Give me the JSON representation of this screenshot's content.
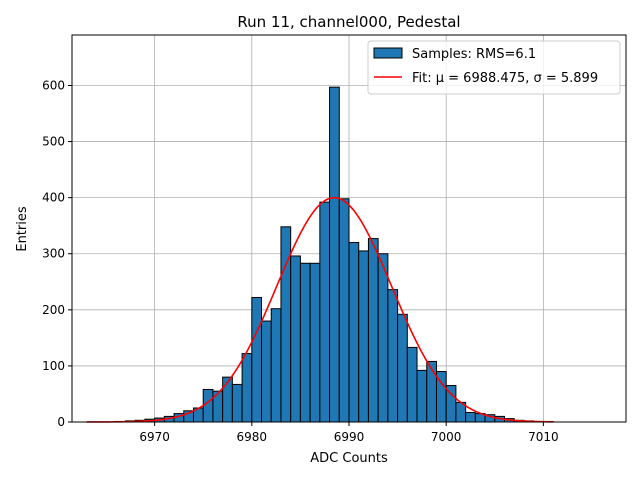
{
  "chart_data": {
    "type": "bar",
    "title": "Run 11, channel000, Pedestal",
    "xlabel": "ADC Counts",
    "ylabel": "Entries",
    "xlim": [
      6961.5,
      7018.5
    ],
    "ylim": [
      0,
      690
    ],
    "xticks": [
      6970,
      6980,
      6990,
      7000,
      7010
    ],
    "yticks": [
      0,
      100,
      200,
      300,
      400,
      500,
      600
    ],
    "grid": true,
    "legend_position": "top-right",
    "bar_color": "#1f77b4",
    "fit_color": "#ff0000",
    "histogram": {
      "name": "Samples: RMS=6.1",
      "bin_width": 1,
      "bin_starts": [
        6966,
        6967,
        6968,
        6969,
        6970,
        6971,
        6972,
        6973,
        6974,
        6975,
        6976,
        6977,
        6978,
        6979,
        6980,
        6981,
        6982,
        6983,
        6984,
        6985,
        6986,
        6987,
        6988,
        6989,
        6990,
        6991,
        6992,
        6993,
        6994,
        6995,
        6996,
        6997,
        6998,
        6999,
        7000,
        7001,
        7002,
        7003,
        7004,
        7005,
        7006,
        7007,
        7008,
        7009,
        7010
      ],
      "counts": [
        1,
        2,
        3,
        5,
        7,
        10,
        15,
        20,
        25,
        58,
        55,
        80,
        67,
        122,
        222,
        180,
        202,
        348,
        296,
        283,
        283,
        392,
        597,
        398,
        320,
        305,
        327,
        300,
        236,
        192,
        133,
        92,
        108,
        90,
        65,
        35,
        17,
        15,
        13,
        10,
        6,
        3,
        2,
        1,
        1
      ]
    },
    "fit": {
      "name": "Fit: μ = 6988.475, σ = 5.899",
      "mu": 6988.475,
      "sigma": 5.899,
      "amplitude": 400,
      "x_range": [
        6963,
        7011
      ]
    }
  }
}
